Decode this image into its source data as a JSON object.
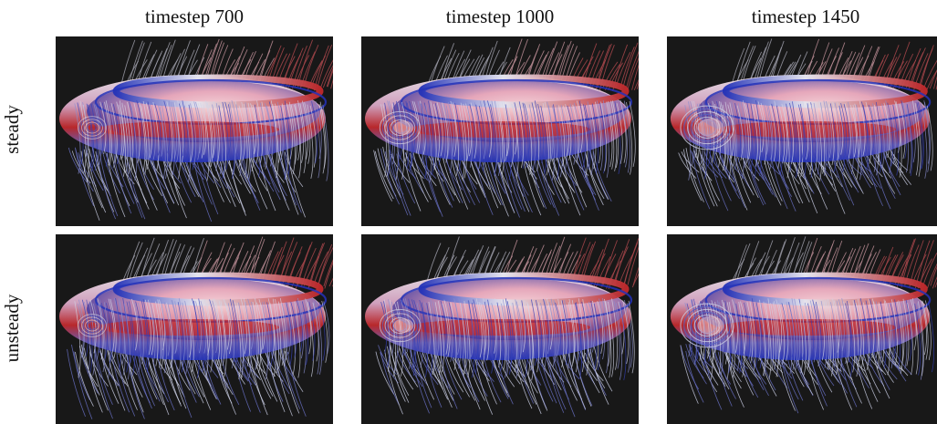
{
  "columns": [
    {
      "label": "timestep 700",
      "vortex": 0.25
    },
    {
      "label": "timestep 1000",
      "vortex": 0.55
    },
    {
      "label": "timestep 1450",
      "vortex": 0.9
    }
  ],
  "rows": [
    {
      "label": "steady"
    },
    {
      "label": "unsteady"
    }
  ],
  "colors": {
    "background": "#181818",
    "high": "#c0292c",
    "low": "#2433b8",
    "neutral": "#d8d8e0"
  }
}
